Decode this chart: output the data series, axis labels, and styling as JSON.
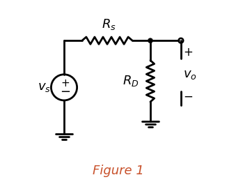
{
  "title": "Figure 1",
  "title_color": "#c8502a",
  "title_fontsize": 13,
  "bg_color": "#ffffff",
  "line_color": "#000000",
  "line_width": 2.0,
  "vs_label": "$v_s$",
  "Rs_label": "$R_s$",
  "RD_label": "$R_D$",
  "vo_label": "$v_o$",
  "plus_label": "+",
  "minus_label": "−"
}
